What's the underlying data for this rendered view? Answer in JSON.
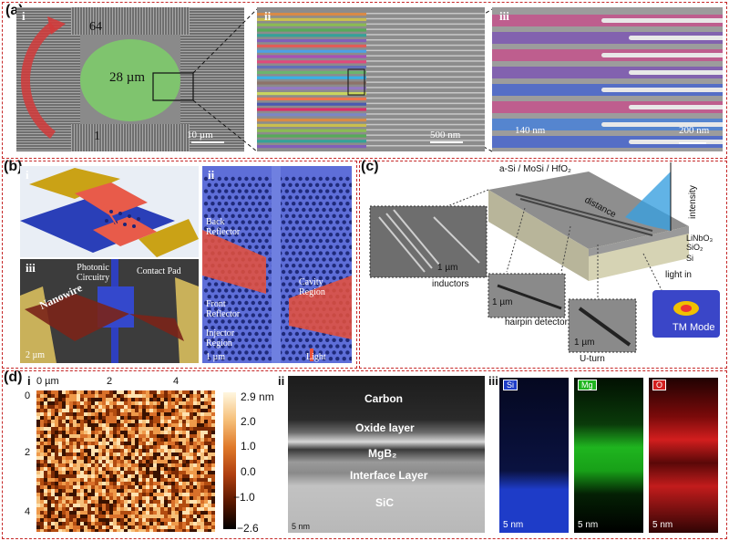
{
  "panels": {
    "a": {
      "label": "(a)",
      "i": {
        "label": "i",
        "top_num": "64",
        "bottom_num": "1",
        "center": "28 µm",
        "scale": "10 µm"
      },
      "ii": {
        "label": "ii",
        "scale": "500 nm"
      },
      "iii": {
        "label": "iii",
        "width_label": "140 nm",
        "scale": "200 nm"
      }
    },
    "b": {
      "label": "(b)",
      "i": {
        "label": "i"
      },
      "ii": {
        "label": "ii",
        "back": "Back\nReflector",
        "cavity": "Cavity\nRegion",
        "front": "Front\nReflector",
        "injector": "Injector\nRegion",
        "light": "Light",
        "scale": "1 µm"
      },
      "iii": {
        "label": "iii",
        "photonic": "Photonic\nCircuitry",
        "contact": "Contact Pad",
        "nanowire": "Nanowire",
        "scale": "2 µm"
      }
    },
    "c": {
      "label": "(c)",
      "top": "a-Si / MoSi / HfO₂",
      "distance": "distance",
      "intensity": "intensity",
      "layers": [
        "LiNbO₃",
        "SiO₂",
        "Si"
      ],
      "light_in": "light in",
      "inductors": "inductors",
      "hairpin": "hairpin detector",
      "uturn": "U-turn",
      "tm": "TM Mode",
      "scale1": "1 µm",
      "scale2": "1 µm",
      "scale3": "1 µm"
    },
    "d": {
      "label": "(d)",
      "i": {
        "label": "i",
        "x_ticks": [
          "0 µm",
          "2",
          "4"
        ],
        "y_ticks": [
          "0",
          "2",
          "4"
        ],
        "cbar": [
          "2.9 nm",
          "2.0",
          "1.0",
          "0.0",
          "−1.0",
          "−2.6"
        ]
      },
      "ii": {
        "label": "ii",
        "layers": [
          "Carbon",
          "Oxide layer",
          "MgB₂",
          "Interface Layer",
          "SiC"
        ],
        "scale": "5 nm"
      },
      "iii": {
        "label": "iii",
        "maps": [
          {
            "el": "Si",
            "scale": "5 nm",
            "color": "#1e3cc8"
          },
          {
            "el": "Mg",
            "scale": "5 nm",
            "color": "#1fb51f"
          },
          {
            "el": "O",
            "scale": "5 nm",
            "color": "#d21e1e"
          }
        ]
      }
    }
  }
}
